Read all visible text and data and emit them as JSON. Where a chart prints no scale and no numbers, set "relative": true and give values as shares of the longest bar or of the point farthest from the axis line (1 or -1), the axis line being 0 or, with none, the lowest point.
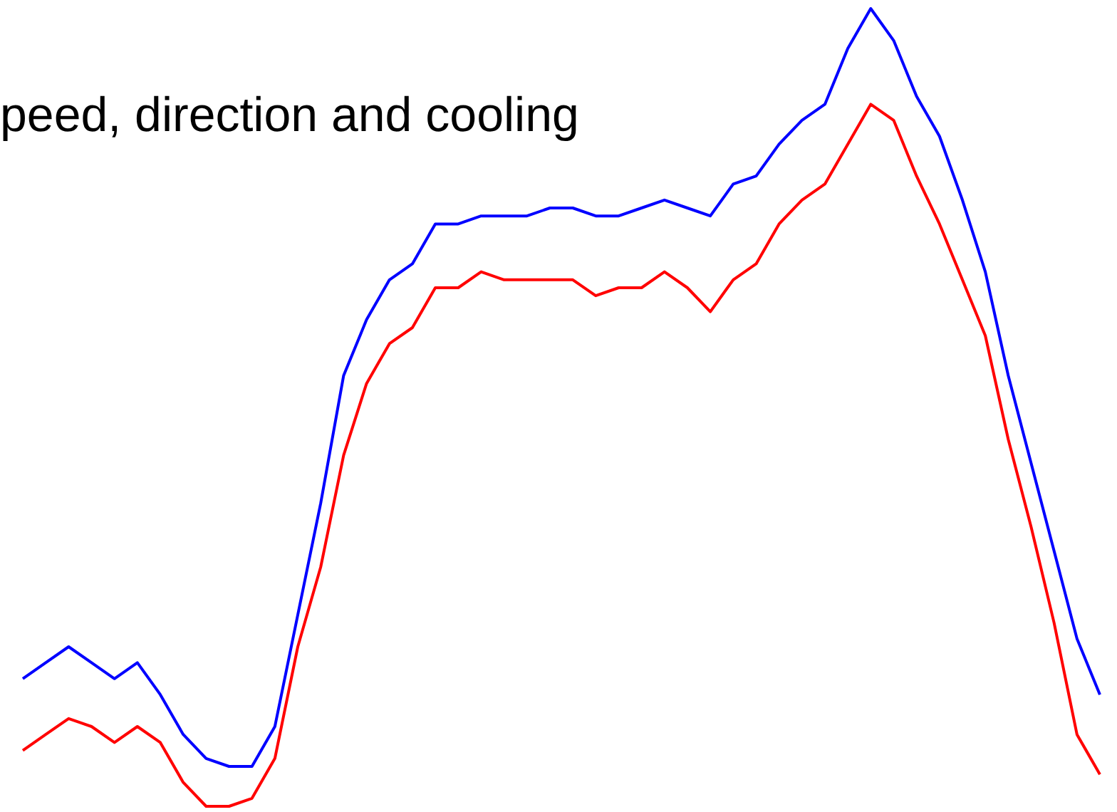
{
  "chart_data": {
    "type": "line",
    "title": "peed, direction and cooling",
    "relative": true,
    "categories": [
      null,
      null,
      null,
      null,
      null,
      null,
      null,
      null,
      null,
      null,
      null,
      null,
      null,
      null,
      null,
      null,
      null,
      null,
      null,
      null,
      null,
      null,
      null,
      null,
      null,
      null,
      null,
      null,
      null,
      null,
      null,
      null,
      null,
      null,
      null,
      null,
      null,
      null,
      null,
      null,
      null,
      null,
      null,
      null,
      null,
      null,
      null,
      null
    ],
    "series": [
      {
        "color": "#0000ff",
        "values": [
          0.16,
          0.18,
          0.2,
          0.18,
          0.16,
          0.18,
          0.14,
          0.09,
          0.06,
          0.05,
          0.05,
          0.1,
          0.24,
          0.38,
          0.54,
          0.61,
          0.66,
          0.68,
          0.73,
          0.73,
          0.74,
          0.74,
          0.74,
          0.75,
          0.75,
          0.74,
          0.74,
          0.75,
          0.76,
          0.75,
          0.74,
          0.78,
          0.79,
          0.83,
          0.86,
          0.88,
          0.95,
          1,
          0.96,
          0.89,
          0.84,
          0.76,
          0.67,
          0.54,
          0.43,
          0.32,
          0.21,
          0.14
        ]
      },
      {
        "color": "#ff0000",
        "values": [
          0.07,
          0.09,
          0.11,
          0.1,
          0.08,
          0.1,
          0.08,
          0.03,
          0,
          0,
          0.01,
          0.06,
          0.2,
          0.3,
          0.44,
          0.53,
          0.58,
          0.6,
          0.65,
          0.65,
          0.67,
          0.66,
          0.66,
          0.66,
          0.66,
          0.64,
          0.65,
          0.65,
          0.67,
          0.65,
          0.62,
          0.66,
          0.68,
          0.73,
          0.76,
          0.78,
          0.83,
          0.88,
          0.86,
          0.79,
          0.73,
          0.66,
          0.59,
          0.46,
          0.35,
          0.23,
          0.09,
          0.04
        ]
      }
    ]
  }
}
